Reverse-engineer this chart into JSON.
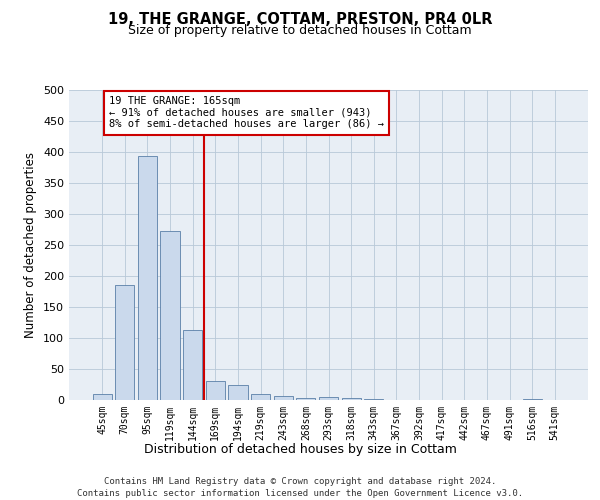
{
  "title_line1": "19, THE GRANGE, COTTAM, PRESTON, PR4 0LR",
  "title_line2": "Size of property relative to detached houses in Cottam",
  "xlabel": "Distribution of detached houses by size in Cottam",
  "ylabel": "Number of detached properties",
  "bar_labels": [
    "45sqm",
    "70sqm",
    "95sqm",
    "119sqm",
    "144sqm",
    "169sqm",
    "194sqm",
    "219sqm",
    "243sqm",
    "268sqm",
    "293sqm",
    "318sqm",
    "343sqm",
    "367sqm",
    "392sqm",
    "417sqm",
    "442sqm",
    "467sqm",
    "491sqm",
    "516sqm",
    "541sqm"
  ],
  "bar_values": [
    10,
    185,
    393,
    272,
    113,
    30,
    25,
    10,
    6,
    4,
    5,
    4,
    1,
    0,
    0,
    0,
    0,
    0,
    0,
    2,
    0
  ],
  "bar_color": "#cad9ec",
  "bar_edge_color": "#5a7fa8",
  "vline_color": "#cc0000",
  "annotation_text": "19 THE GRANGE: 165sqm\n← 91% of detached houses are smaller (943)\n8% of semi-detached houses are larger (86) →",
  "annotation_box_color": "#cc0000",
  "ylim": [
    0,
    500
  ],
  "yticks": [
    0,
    50,
    100,
    150,
    200,
    250,
    300,
    350,
    400,
    450,
    500
  ],
  "grid_color": "#b8c8d8",
  "bg_color": "#e8eef5",
  "footer_line1": "Contains HM Land Registry data © Crown copyright and database right 2024.",
  "footer_line2": "Contains public sector information licensed under the Open Government Licence v3.0."
}
